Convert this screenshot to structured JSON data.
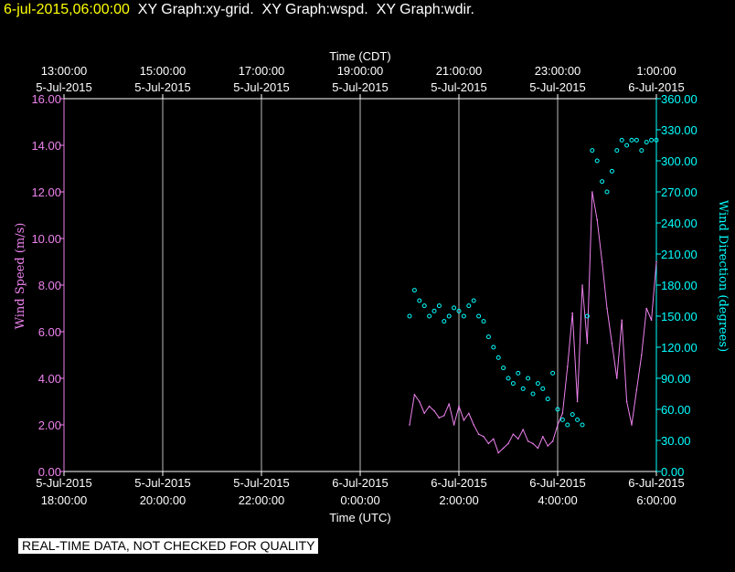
{
  "header": {
    "date": "6-jul-2015,06:00:00",
    "titles": "XY Graph:xy-grid.  XY Graph:wspd.  XY Graph:wdir."
  },
  "banner": "REAL-TIME DATA, NOT CHECKED FOR QUALITY",
  "colors": {
    "background": "#000000",
    "axes": "#ffffff",
    "wind_speed": "#ee82ee",
    "wind_direction": "#00ffff",
    "header_date": "#ffff00"
  },
  "chart_data": {
    "type": "line",
    "title": "",
    "top_axis": {
      "label": "Time (CDT)",
      "ticks": [
        {
          "hour_utc": 18,
          "line1": "13:00:00",
          "line2": "5-Jul-2015"
        },
        {
          "hour_utc": 20,
          "line1": "15:00:00",
          "line2": "5-Jul-2015"
        },
        {
          "hour_utc": 22,
          "line1": "17:00:00",
          "line2": "5-Jul-2015"
        },
        {
          "hour_utc": 24,
          "line1": "19:00:00",
          "line2": "5-Jul-2015"
        },
        {
          "hour_utc": 26,
          "line1": "21:00:00",
          "line2": "5-Jul-2015"
        },
        {
          "hour_utc": 28,
          "line1": "23:00:00",
          "line2": "5-Jul-2015"
        },
        {
          "hour_utc": 30,
          "line1": "1:00:00",
          "line2": "6-Jul-2015"
        }
      ]
    },
    "x_axis": {
      "label": "Time (UTC)",
      "range_hours_utc": [
        18,
        30
      ],
      "ticks": [
        {
          "hour_utc": 18,
          "line1": "5-Jul-2015",
          "line2": "18:00:00"
        },
        {
          "hour_utc": 20,
          "line1": "5-Jul-2015",
          "line2": "20:00:00"
        },
        {
          "hour_utc": 22,
          "line1": "5-Jul-2015",
          "line2": "22:00:00"
        },
        {
          "hour_utc": 24,
          "line1": "6-Jul-2015",
          "line2": "0:00:00"
        },
        {
          "hour_utc": 26,
          "line1": "6-Jul-2015",
          "line2": "2:00:00"
        },
        {
          "hour_utc": 28,
          "line1": "6-Jul-2015",
          "line2": "4:00:00"
        },
        {
          "hour_utc": 30,
          "line1": "6-Jul-2015",
          "line2": "6:00:00"
        }
      ],
      "grid": true
    },
    "y_left": {
      "label": "Wind Speed (m/s)",
      "range": [
        0,
        16
      ],
      "ticks": [
        "0.00",
        "2.00",
        "4.00",
        "6.00",
        "8.00",
        "10.00",
        "12.00",
        "14.00",
        "16.00"
      ]
    },
    "y_right": {
      "label": "Wind Direction (degrees)",
      "range": [
        0,
        360
      ],
      "ticks": [
        "0.00",
        "30.00",
        "60.00",
        "90.00",
        "120.00",
        "150.00",
        "180.00",
        "210.00",
        "240.00",
        "270.00",
        "300.00",
        "330.00",
        "360.00"
      ]
    },
    "series": [
      {
        "name": "Wind Speed (m/s)",
        "type": "line",
        "axis": "left",
        "x_hours_utc": [
          25.0,
          25.1,
          25.2,
          25.3,
          25.4,
          25.5,
          25.6,
          25.7,
          25.8,
          25.9,
          26.0,
          26.1,
          26.2,
          26.3,
          26.4,
          26.5,
          26.6,
          26.7,
          26.8,
          26.9,
          27.0,
          27.1,
          27.2,
          27.3,
          27.4,
          27.5,
          27.6,
          27.7,
          27.8,
          27.9,
          28.0,
          28.1,
          28.2,
          28.3,
          28.4,
          28.5,
          28.6,
          28.7,
          28.8,
          28.9,
          29.0,
          29.1,
          29.2,
          29.3,
          29.4,
          29.5,
          29.6,
          29.7,
          29.8,
          29.9,
          30.0
        ],
        "values": [
          2.0,
          3.3,
          3.0,
          2.5,
          2.8,
          2.6,
          2.3,
          2.4,
          2.9,
          2.0,
          2.8,
          2.2,
          2.5,
          2.0,
          1.6,
          1.5,
          1.2,
          1.4,
          0.8,
          1.0,
          1.2,
          1.6,
          1.4,
          1.8,
          1.3,
          1.2,
          1.0,
          1.5,
          1.1,
          1.3,
          2.0,
          2.5,
          4.5,
          6.8,
          3.0,
          8.0,
          5.5,
          12.0,
          10.8,
          9.0,
          7.0,
          5.5,
          4.0,
          6.5,
          3.0,
          2.0,
          3.5,
          5.0,
          7.0,
          6.5,
          9.0
        ]
      },
      {
        "name": "Wind Direction (degrees)",
        "type": "scatter",
        "axis": "right",
        "x_hours_utc": [
          25.0,
          25.1,
          25.2,
          25.3,
          25.4,
          25.5,
          25.6,
          25.7,
          25.8,
          25.9,
          26.0,
          26.1,
          26.2,
          26.3,
          26.4,
          26.5,
          26.6,
          26.7,
          26.8,
          26.9,
          27.0,
          27.1,
          27.2,
          27.3,
          27.4,
          27.5,
          27.6,
          27.7,
          27.8,
          27.9,
          28.0,
          28.1,
          28.2,
          28.3,
          28.4,
          28.5,
          28.6,
          28.7,
          28.8,
          28.9,
          29.0,
          29.1,
          29.2,
          29.3,
          29.4,
          29.5,
          29.6,
          29.7,
          29.8,
          29.9,
          30.0
        ],
        "values": [
          150,
          175,
          165,
          160,
          150,
          155,
          160,
          145,
          150,
          158,
          155,
          150,
          160,
          165,
          150,
          145,
          130,
          120,
          110,
          100,
          90,
          85,
          95,
          80,
          90,
          75,
          85,
          80,
          70,
          95,
          60,
          50,
          45,
          55,
          50,
          45,
          150,
          310,
          300,
          280,
          270,
          290,
          310,
          320,
          315,
          320,
          320,
          310,
          318,
          320,
          320
        ]
      }
    ]
  }
}
